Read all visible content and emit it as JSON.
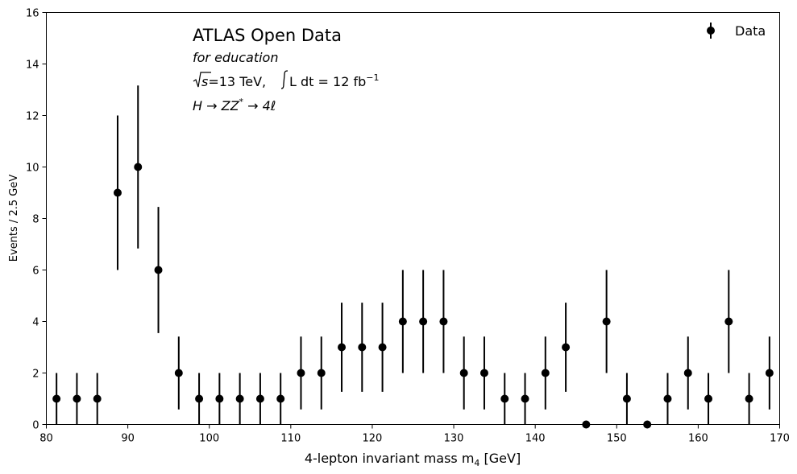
{
  "chart_data": {
    "type": "scatter",
    "title": "",
    "xlabel": "4-lepton invariant mass m",
    "xlabel_sub": "4",
    "xlabel_unit": " [GeV]",
    "ylabel": "Events / 2.5 GeV",
    "xlim": [
      80,
      170
    ],
    "ylim": [
      0,
      16
    ],
    "xticks": [
      "80",
      "90",
      "100",
      "110",
      "120",
      "130",
      "140",
      "150",
      "160",
      "170"
    ],
    "yticks": [
      "0",
      "2",
      "4",
      "6",
      "8",
      "10",
      "12",
      "14",
      "16"
    ],
    "grid": false,
    "legend_position": "top-right",
    "series": [
      {
        "name": "Data",
        "color": "#000000",
        "marker": "circle",
        "error_bars": "sqrt(N)",
        "x": [
          81.25,
          83.75,
          86.25,
          88.75,
          91.25,
          93.75,
          96.25,
          98.75,
          101.25,
          103.75,
          106.25,
          108.75,
          111.25,
          113.75,
          116.25,
          118.75,
          121.25,
          123.75,
          126.25,
          128.75,
          131.25,
          133.75,
          136.25,
          138.75,
          141.25,
          143.75,
          146.25,
          148.75,
          151.25,
          153.75,
          156.25,
          158.75,
          161.25,
          163.75,
          166.25,
          168.75
        ],
        "y": [
          1,
          1,
          1,
          9,
          10,
          6,
          2,
          1,
          1,
          1,
          1,
          1,
          2,
          2,
          3,
          3,
          3,
          4,
          4,
          4,
          2,
          2,
          1,
          1,
          2,
          3,
          0,
          4,
          1,
          0,
          1,
          2,
          1,
          4,
          1,
          2
        ]
      }
    ],
    "annotations": {
      "line1": "ATLAS Open Data",
      "line2": "for education",
      "line3_sqrt_s": "s",
      "line3_energy": "=13 TeV, ",
      "line3_lumi": "L dt = 12 fb",
      "line3_exp": "−1",
      "line4_H": "H",
      "line4_arrow1": " → ",
      "line4_ZZ": "ZZ",
      "line4_star": "*",
      "line4_arrow2": " → ",
      "line4_4l": "4ℓ"
    }
  }
}
